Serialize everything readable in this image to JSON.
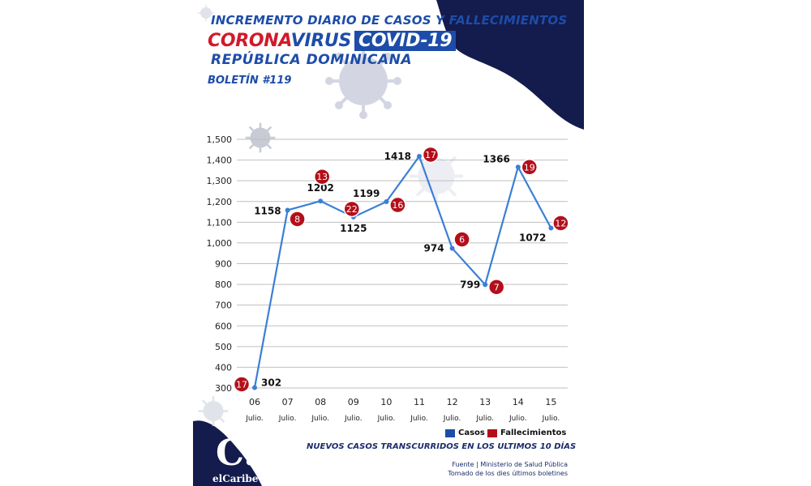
{
  "header": {
    "line1": "INCREMENTO DIARIO DE CASOS Y FALLECIMIENTOS",
    "corona": "CORONA",
    "virus": "VIRUS",
    "covid": "COVID-19",
    "line3": "REPÚBLICA DOMINICANA",
    "bulletin": "BOLETÍN #119"
  },
  "colors": {
    "navy": "#141b4d",
    "blue": "#1d4da8",
    "line": "#3b7fd6",
    "red": "#b30f1b",
    "grid": "#bfbfbf"
  },
  "legend": {
    "cases": "Casos",
    "deaths": "Fallecimientos"
  },
  "subtitle": "NUEVOS CASOS TRANSCURRIDOS EN LOS ULTIMOS 10 DÍAS",
  "source": {
    "line1": "Fuente | Ministerio de Salud Pública",
    "line2": "Tomado de  los dies últimos boletines"
  },
  "logo": {
    "big": "C.",
    "small": "elCaribe"
  },
  "chart_data": {
    "type": "line",
    "categories": [
      "06",
      "07",
      "08",
      "09",
      "10",
      "11",
      "12",
      "13",
      "14",
      "15"
    ],
    "category_sublabel": "Julio.",
    "ylim": [
      300,
      1500
    ],
    "yticks": [
      300,
      400,
      500,
      600,
      700,
      800,
      900,
      1000,
      1100,
      1200,
      1300,
      1400,
      1500
    ],
    "ytick_labels": [
      "300",
      "400",
      "500",
      "600",
      "700",
      "800",
      "900",
      "1,000",
      "1,100",
      "1,200",
      "1,300",
      "1,400",
      "1,500"
    ],
    "grid": true,
    "series": [
      {
        "name": "Casos",
        "values": [
          302,
          1158,
          1202,
          1125,
          1199,
          1418,
          974,
          799,
          1366,
          1072
        ]
      },
      {
        "name": "Fallecimientos",
        "values": [
          17,
          8,
          13,
          22,
          16,
          17,
          6,
          7,
          19,
          12
        ]
      }
    ]
  }
}
